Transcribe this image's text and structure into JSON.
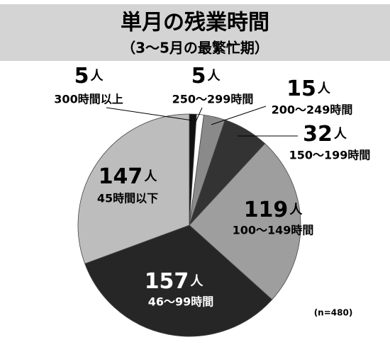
{
  "chart_data": {
    "type": "pie",
    "title": "単月の残業時間",
    "subtitle": "（3〜5月の最繁忙期）",
    "note": "(n=480)",
    "unit": "人",
    "categories": [
      "300時間以上",
      "250〜299時間",
      "200〜249時間",
      "150〜199時間",
      "100〜149時間",
      "46〜99時間",
      "45時間以下"
    ],
    "values": [
      5,
      5,
      15,
      32,
      119,
      157,
      147
    ],
    "colors": [
      "#111111",
      "#ffffff",
      "#8a8a8a",
      "#333333",
      "#9e9e9e",
      "#262626",
      "#bdbdbd"
    ]
  }
}
